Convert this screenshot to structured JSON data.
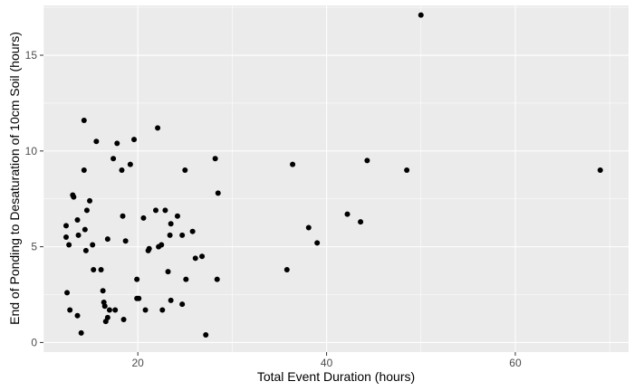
{
  "chart_data": {
    "type": "scatter",
    "title": "",
    "xlabel": "Total Event Duration (hours)",
    "ylabel": "End of Ponding to Desaturation of 10cm Soil (hours)",
    "xlim": [
      10,
      72
    ],
    "ylim": [
      -0.5,
      17.6
    ],
    "xticks": [
      20,
      40,
      60
    ],
    "yticks": [
      0,
      5,
      10,
      15
    ],
    "grid": true,
    "legend": "none",
    "colors": {
      "panel": "#ebebeb",
      "grid": "#ffffff",
      "point": "#000000",
      "tick_text": "#4d4d4d",
      "axis_title": "#000000"
    },
    "points": [
      {
        "x": 12.4,
        "y": 6.1
      },
      {
        "x": 12.4,
        "y": 5.5
      },
      {
        "x": 12.5,
        "y": 2.6
      },
      {
        "x": 12.7,
        "y": 5.1
      },
      {
        "x": 12.8,
        "y": 1.7
      },
      {
        "x": 13.1,
        "y": 7.7
      },
      {
        "x": 13.2,
        "y": 7.6
      },
      {
        "x": 13.6,
        "y": 6.4
      },
      {
        "x": 13.6,
        "y": 1.4
      },
      {
        "x": 13.7,
        "y": 5.6
      },
      {
        "x": 14.0,
        "y": 0.5
      },
      {
        "x": 14.3,
        "y": 11.6
      },
      {
        "x": 14.3,
        "y": 9.0
      },
      {
        "x": 14.4,
        "y": 5.9
      },
      {
        "x": 14.5,
        "y": 4.8
      },
      {
        "x": 14.6,
        "y": 6.9
      },
      {
        "x": 14.9,
        "y": 7.4
      },
      {
        "x": 15.2,
        "y": 5.1
      },
      {
        "x": 15.3,
        "y": 3.8
      },
      {
        "x": 15.6,
        "y": 10.5
      },
      {
        "x": 16.1,
        "y": 3.8
      },
      {
        "x": 16.3,
        "y": 2.7
      },
      {
        "x": 16.4,
        "y": 2.1
      },
      {
        "x": 16.5,
        "y": 1.9
      },
      {
        "x": 16.6,
        "y": 1.1
      },
      {
        "x": 16.8,
        "y": 1.3
      },
      {
        "x": 16.8,
        "y": 5.4
      },
      {
        "x": 17.0,
        "y": 1.7
      },
      {
        "x": 17.4,
        "y": 9.6
      },
      {
        "x": 17.6,
        "y": 1.7
      },
      {
        "x": 17.8,
        "y": 10.4
      },
      {
        "x": 18.3,
        "y": 9.0
      },
      {
        "x": 18.4,
        "y": 6.6
      },
      {
        "x": 18.5,
        "y": 1.2
      },
      {
        "x": 18.7,
        "y": 5.3
      },
      {
        "x": 19.2,
        "y": 9.3
      },
      {
        "x": 19.6,
        "y": 10.6
      },
      {
        "x": 19.9,
        "y": 3.3
      },
      {
        "x": 19.9,
        "y": 2.3
      },
      {
        "x": 20.1,
        "y": 2.3
      },
      {
        "x": 20.6,
        "y": 6.5
      },
      {
        "x": 20.8,
        "y": 1.7
      },
      {
        "x": 21.1,
        "y": 4.8
      },
      {
        "x": 21.2,
        "y": 4.9
      },
      {
        "x": 21.9,
        "y": 6.9
      },
      {
        "x": 22.1,
        "y": 11.2
      },
      {
        "x": 22.2,
        "y": 5.0
      },
      {
        "x": 22.5,
        "y": 5.1
      },
      {
        "x": 22.6,
        "y": 1.7
      },
      {
        "x": 22.9,
        "y": 6.9
      },
      {
        "x": 23.2,
        "y": 3.7
      },
      {
        "x": 23.4,
        "y": 5.6
      },
      {
        "x": 23.5,
        "y": 2.2
      },
      {
        "x": 23.5,
        "y": 6.2
      },
      {
        "x": 24.2,
        "y": 6.6
      },
      {
        "x": 24.7,
        "y": 2.0
      },
      {
        "x": 24.7,
        "y": 5.6
      },
      {
        "x": 25.0,
        "y": 9.0
      },
      {
        "x": 25.1,
        "y": 3.3
      },
      {
        "x": 25.8,
        "y": 5.8
      },
      {
        "x": 26.1,
        "y": 4.4
      },
      {
        "x": 26.8,
        "y": 4.5
      },
      {
        "x": 27.2,
        "y": 0.4
      },
      {
        "x": 28.2,
        "y": 9.6
      },
      {
        "x": 28.4,
        "y": 3.3
      },
      {
        "x": 28.5,
        "y": 7.8
      },
      {
        "x": 35.8,
        "y": 3.8
      },
      {
        "x": 36.4,
        "y": 9.3
      },
      {
        "x": 38.1,
        "y": 6.0
      },
      {
        "x": 39.0,
        "y": 5.2
      },
      {
        "x": 42.2,
        "y": 6.7
      },
      {
        "x": 43.6,
        "y": 6.3
      },
      {
        "x": 44.3,
        "y": 9.5
      },
      {
        "x": 48.5,
        "y": 9.0
      },
      {
        "x": 50.0,
        "y": 17.1
      },
      {
        "x": 69.0,
        "y": 9.0
      }
    ]
  }
}
